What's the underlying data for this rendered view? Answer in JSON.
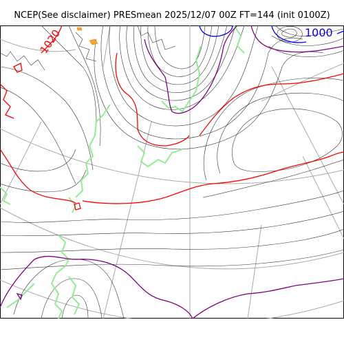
{
  "title": "NCEP(See disclaimer) PRESmean 2025/12/07 00Z FT=144 (init 0100Z)",
  "contour_labels": {
    "high": "1020",
    "low": "1000"
  },
  "colors": {
    "isobar": "#333333",
    "contour_1020": "#ff0000",
    "contour_1000": "#0000ff",
    "contour_purple": "#800080",
    "coastline": "#90ee90",
    "graticule": "#aaaaaa",
    "orange_fill": "#f5a623"
  }
}
